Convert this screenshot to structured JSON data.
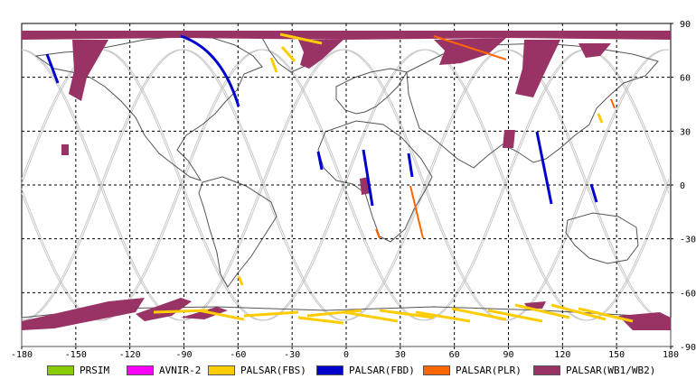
{
  "map": {
    "lon_ticks": [
      -180,
      -150,
      -120,
      -90,
      -60,
      -30,
      0,
      30,
      60,
      90,
      120,
      150,
      180
    ],
    "lat_ticks": [
      90,
      60,
      30,
      0,
      -30,
      -60,
      -90
    ],
    "grid": "dashed",
    "background": "#ffffff",
    "coastline_color": "#555555",
    "orbit_track_color": "#c8c8c8"
  },
  "legend": {
    "items": [
      {
        "label": "PRSIM",
        "color": "#88cc00"
      },
      {
        "label": "AVNIR-2",
        "color": "#ff00ff"
      },
      {
        "label": "PALSAR(FBS)",
        "color": "#ffcc00"
      },
      {
        "label": "PALSAR(FBD)",
        "color": "#0000cc"
      },
      {
        "label": "PALSAR(PLR)",
        "color": "#ff6600"
      },
      {
        "label": "PALSAR(WB1/WB2)",
        "color": "#993366"
      }
    ]
  }
}
